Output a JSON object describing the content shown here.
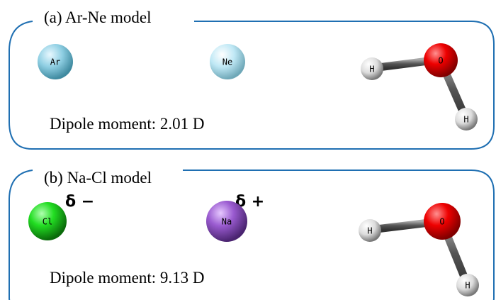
{
  "panels": [
    {
      "title": "(a) Ar-Ne model",
      "atoms": [
        {
          "label": "Ar"
        },
        {
          "label": "Ne"
        },
        {
          "label": "H"
        },
        {
          "label": "O"
        },
        {
          "label": "H"
        }
      ],
      "dipole": "Dipole moment: 2.01 D"
    },
    {
      "title": "(b) Na-Cl model",
      "charges": [
        "δ −",
        "δ +"
      ],
      "atoms": [
        {
          "label": "Cl"
        },
        {
          "label": "Na"
        },
        {
          "label": "H"
        },
        {
          "label": "O"
        },
        {
          "label": "H"
        }
      ],
      "dipole": "Dipole moment: 9.13 D"
    }
  ]
}
